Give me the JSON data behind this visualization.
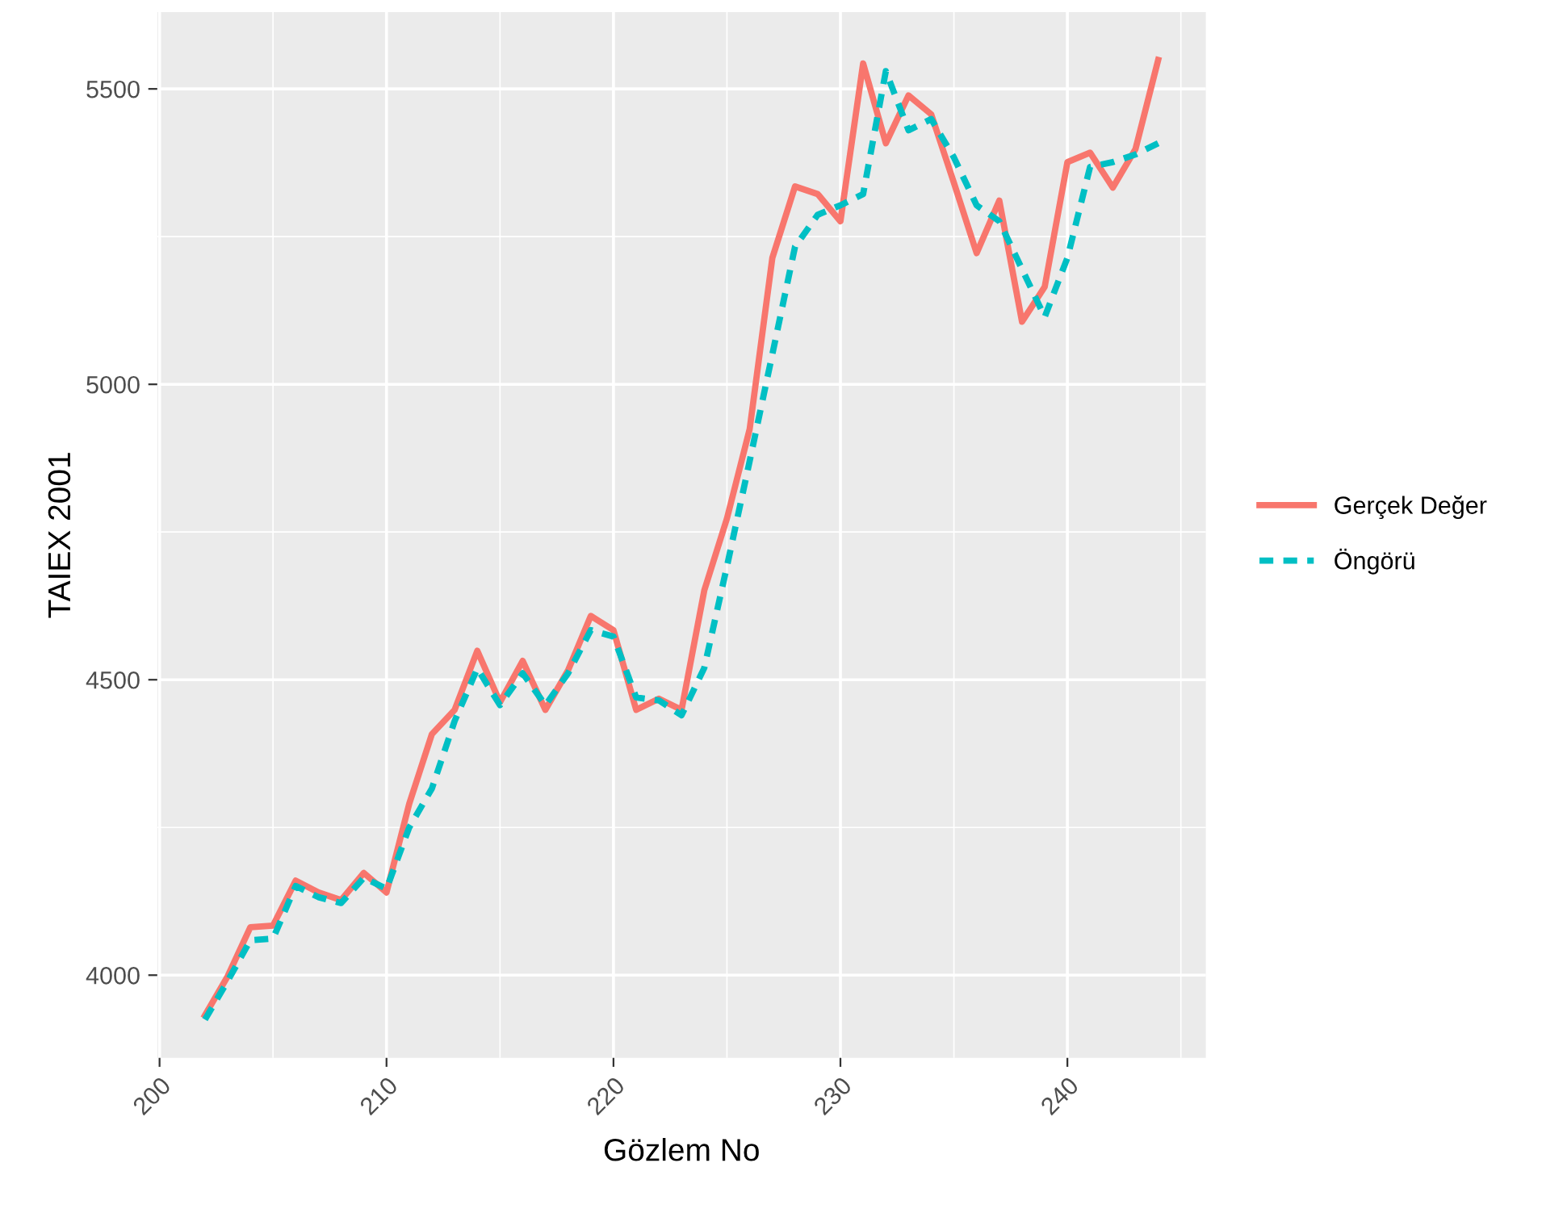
{
  "chart_data": {
    "type": "line",
    "xlabel": "Gözlem No",
    "ylabel": "TAIEX 2001",
    "x": [
      202,
      203,
      204,
      205,
      206,
      207,
      208,
      209,
      210,
      211,
      212,
      213,
      214,
      215,
      216,
      217,
      218,
      219,
      220,
      221,
      222,
      223,
      224,
      225,
      226,
      227,
      228,
      229,
      230,
      231,
      232,
      233,
      234,
      235,
      236,
      237,
      238,
      239,
      240,
      241,
      242,
      243,
      244
    ],
    "series": [
      {
        "name": "Gerçek Değer",
        "color": "#f8766d",
        "line_style": "solid",
        "values": [
          3932,
          3998,
          4081,
          4084,
          4160,
          4140,
          4127,
          4173,
          4140,
          4290,
          4408,
          4449,
          4549,
          4462,
          4532,
          4449,
          4516,
          4608,
          4584,
          4449,
          4468,
          4449,
          4651,
          4773,
          4924,
          5214,
          5335,
          5322,
          5276,
          5543,
          5408,
          5489,
          5457,
          5341,
          5222,
          5311,
          5106,
          5165,
          5376,
          5392,
          5333,
          5398,
          5549
        ]
      },
      {
        "name": "Öngörü",
        "color": "#00bfc4",
        "line_style": "dashed",
        "values": [
          3925,
          3990,
          4059,
          4062,
          4151,
          4132,
          4122,
          4165,
          4146,
          4250,
          4316,
          4430,
          4519,
          4457,
          4511,
          4457,
          4511,
          4584,
          4573,
          4470,
          4465,
          4440,
          4520,
          4692,
          4870,
          5051,
          5233,
          5287,
          5303,
          5322,
          5530,
          5430,
          5449,
          5384,
          5303,
          5276,
          5195,
          5114,
          5214,
          5368,
          5376,
          5389,
          5408
        ]
      }
    ],
    "xlim": [
      199.9,
      246.1
    ],
    "xticks": [
      200,
      210,
      220,
      230,
      240
    ],
    "ylim": [
      3860,
      5630
    ],
    "yticks": [
      4000,
      4500,
      5000,
      5500
    ],
    "grid": true,
    "legend": "right",
    "marker": "none"
  }
}
